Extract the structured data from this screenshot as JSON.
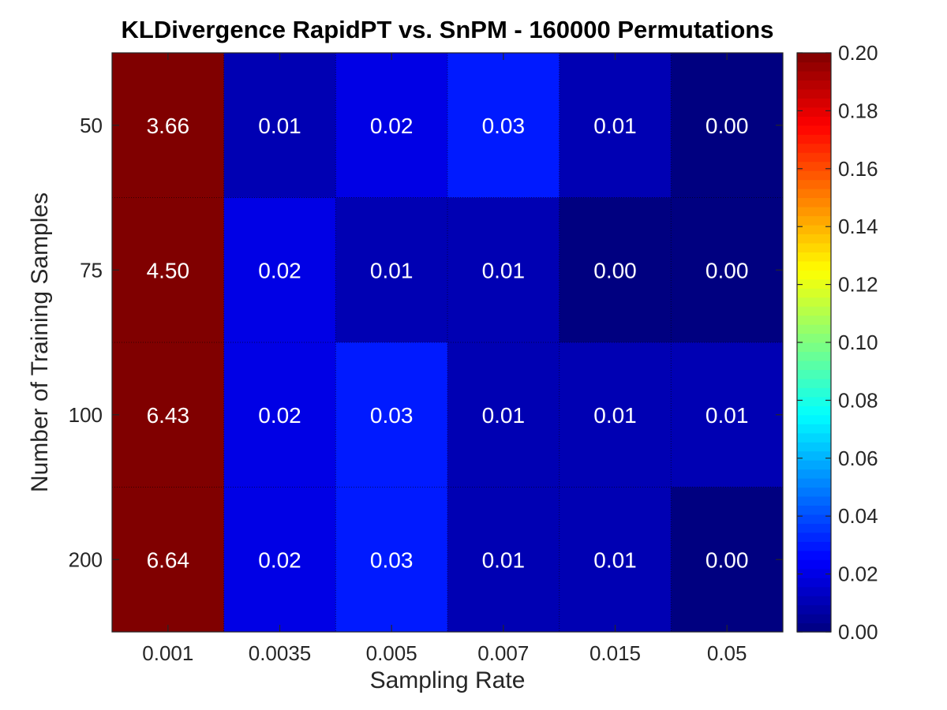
{
  "chart_data": {
    "type": "heatmap",
    "title": "KLDivergence RapidPT vs. SnPM - 160000 Permutations",
    "xlabel": "Sampling Rate",
    "ylabel": "Number of Training Samples",
    "x_categories": [
      "0.001",
      "0.0035",
      "0.005",
      "0.007",
      "0.015",
      "0.05"
    ],
    "y_categories": [
      "50",
      "75",
      "100",
      "200"
    ],
    "values": [
      [
        3.66,
        0.01,
        0.02,
        0.03,
        0.01,
        0.0
      ],
      [
        4.5,
        0.02,
        0.01,
        0.01,
        0.0,
        0.0
      ],
      [
        6.43,
        0.02,
        0.03,
        0.01,
        0.01,
        0.01
      ],
      [
        6.64,
        0.02,
        0.03,
        0.01,
        0.01,
        0.0
      ]
    ],
    "cell_labels": [
      [
        "3.66",
        "0.01",
        "0.02",
        "0.03",
        "0.01",
        "0.00"
      ],
      [
        "4.50",
        "0.02",
        "0.01",
        "0.01",
        "0.00",
        "0.00"
      ],
      [
        "6.43",
        "0.02",
        "0.03",
        "0.01",
        "0.01",
        "0.01"
      ],
      [
        "6.64",
        "0.02",
        "0.03",
        "0.01",
        "0.01",
        "0.00"
      ]
    ],
    "colormap": "jet",
    "color_limits": [
      0,
      0.2
    ],
    "colorbar_ticks": [
      "0.00",
      "0.02",
      "0.04",
      "0.06",
      "0.08",
      "0.10",
      "0.12",
      "0.14",
      "0.16",
      "0.18",
      "0.20"
    ],
    "colorbar_position": "right",
    "grid": true
  }
}
